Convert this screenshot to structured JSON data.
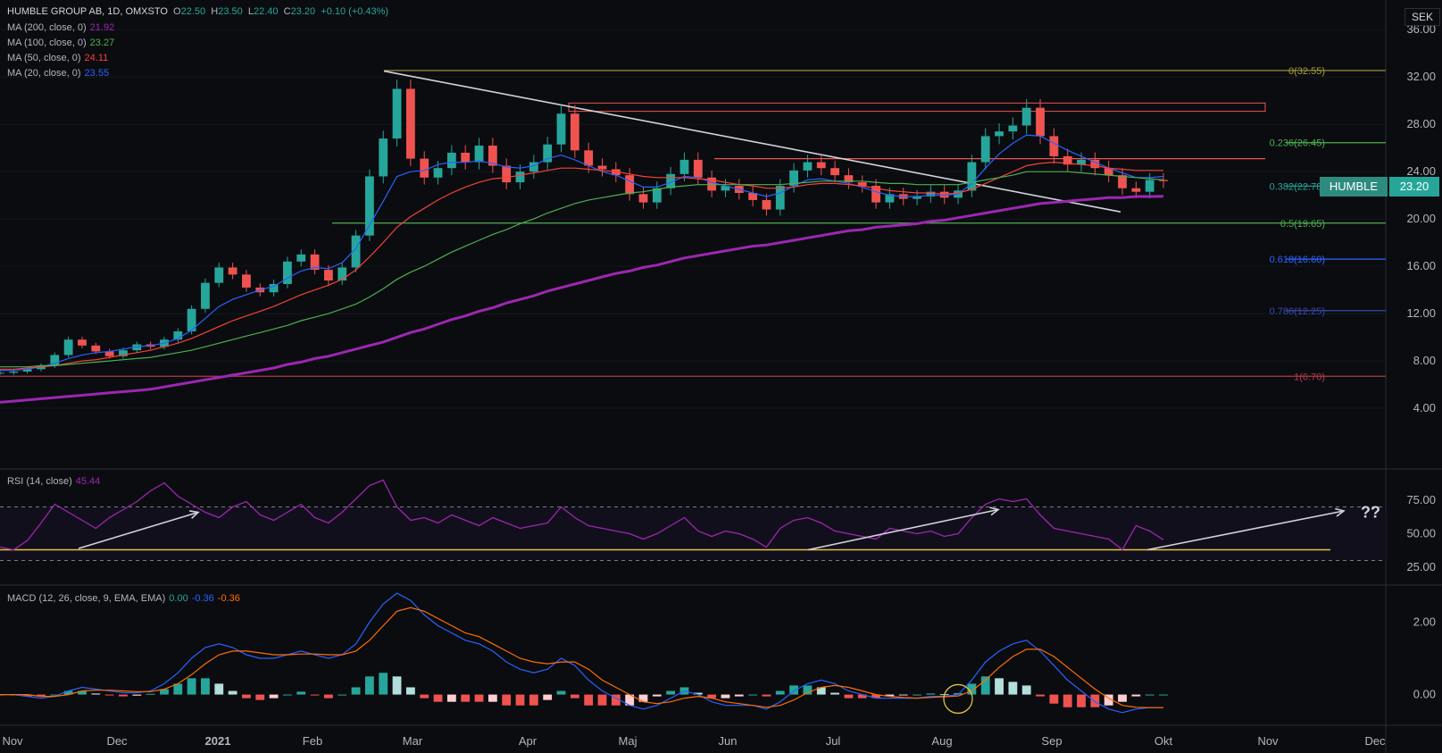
{
  "header": {
    "symbol": "HUMBLE GROUP AB, 1D, OMXSTO",
    "o_label": "O",
    "o": "22.50",
    "h_label": "H",
    "h": "23.50",
    "l_label": "L",
    "l": "22.40",
    "c_label": "C",
    "c": "23.20",
    "change": "+0.10 (+0.43%)"
  },
  "currency": "SEK",
  "ticker_tag": "HUMBLE",
  "price_tag": "23.20",
  "ma_legend": [
    {
      "label": "MA (200, close, 0)",
      "value": "21.92",
      "color": "#9c27b0"
    },
    {
      "label": "MA (100, close, 0)",
      "value": "23.27",
      "color": "#4caf50"
    },
    {
      "label": "MA (50, close, 0)",
      "value": "24.11",
      "color": "#f44336"
    },
    {
      "label": "MA (20, close, 0)",
      "value": "23.55",
      "color": "#2962ff"
    }
  ],
  "rsi_legend": {
    "label": "RSI (14, close)",
    "value": "45.44",
    "color": "#9c27b0"
  },
  "macd_legend": {
    "label": "MACD (12, 26, close, 9, EMA, EMA)",
    "v1": "0.00",
    "v2": "-0.36",
    "v3": "-0.36",
    "c1": "#26a69a",
    "c2": "#2962ff",
    "c3": "#ff6d00"
  },
  "annotation": "??",
  "colors": {
    "up": "#26a69a",
    "down": "#ef5350",
    "bg": "#0b0c10",
    "grid": "#1a1c23"
  },
  "chart_data": [
    {
      "type": "line",
      "title": "HUMBLE GROUP AB, 1D, OMXSTO",
      "ylabel": "SEK",
      "ylim": [
        0,
        37
      ],
      "y_ticks": [
        "36.00",
        "32.00",
        "28.00",
        "24.00",
        "20.00",
        "16.00",
        "12.00",
        "8.00",
        "4.00"
      ],
      "x_ticks": [
        "Nov",
        "Dec",
        "2021",
        "Feb",
        "Mar",
        "Apr",
        "Maj",
        "Jun",
        "Jul",
        "Aug",
        "Sep",
        "Okt",
        "Nov",
        "Dec"
      ],
      "series": [
        {
          "name": "Close",
          "color": "#26a69a",
          "values": [
            7.0,
            7.1,
            7.3,
            7.6,
            8.5,
            9.8,
            9.3,
            8.8,
            8.4,
            8.9,
            9.4,
            9.2,
            9.8,
            10.5,
            12.4,
            14.6,
            15.9,
            15.3,
            14.2,
            13.8,
            14.5,
            16.4,
            17.0,
            15.7,
            14.8,
            15.9,
            18.6,
            23.6,
            26.8,
            31.0,
            25.1,
            23.5,
            24.3,
            25.6,
            24.8,
            26.2,
            24.5,
            23.1,
            24.0,
            24.8,
            26.3,
            28.9,
            25.8,
            24.5,
            24.2,
            23.7,
            22.1,
            21.4,
            22.6,
            23.8,
            25.0,
            23.5,
            22.4,
            22.8,
            22.2,
            21.6,
            20.8,
            22.8,
            24.1,
            24.8,
            24.3,
            23.7,
            23.1,
            22.8,
            21.4,
            22.1,
            21.7,
            21.9,
            22.3,
            21.8,
            22.4,
            24.8,
            27.0,
            27.4,
            27.9,
            29.4,
            27.0,
            25.3,
            24.6,
            25.0,
            24.3,
            23.7,
            22.6,
            22.3,
            23.3,
            23.2
          ]
        },
        {
          "name": "MA (20, close, 0)",
          "color": "#2962ff",
          "values": [
            7.2,
            7.2,
            7.3,
            7.5,
            7.8,
            8.2,
            8.5,
            8.7,
            8.8,
            9.0,
            9.2,
            9.3,
            9.5,
            9.9,
            10.6,
            11.6,
            12.6,
            13.2,
            13.6,
            14.0,
            14.3,
            15.0,
            15.6,
            15.9,
            15.8,
            16.3,
            17.5,
            19.5,
            21.5,
            23.6,
            24.0,
            24.1,
            24.6,
            24.8,
            24.8,
            24.9,
            24.7,
            24.4,
            24.3,
            24.5,
            25.1,
            25.4,
            25.0,
            24.5,
            24.0,
            23.7,
            23.2,
            22.7,
            22.7,
            23.1,
            23.6,
            23.5,
            23.1,
            22.8,
            22.5,
            22.2,
            21.9,
            22.2,
            22.8,
            23.3,
            23.4,
            23.2,
            23.0,
            22.7,
            22.3,
            22.0,
            21.9,
            21.9,
            22.0,
            22.0,
            22.1,
            23.0,
            24.3,
            25.5,
            26.4,
            27.1,
            27.0,
            26.4,
            25.8,
            25.3,
            24.8,
            24.3,
            23.9,
            23.5,
            23.5,
            23.6
          ]
        },
        {
          "name": "MA (50, close, 0)",
          "color": "#f44336",
          "values": [
            7.3,
            7.3,
            7.4,
            7.5,
            7.6,
            7.8,
            8.0,
            8.1,
            8.3,
            8.5,
            8.7,
            8.9,
            9.2,
            9.5,
            9.9,
            10.4,
            10.9,
            11.4,
            11.8,
            12.2,
            12.6,
            13.1,
            13.6,
            14.0,
            14.4,
            14.9,
            15.7,
            16.8,
            18.0,
            19.3,
            20.2,
            20.9,
            21.6,
            22.2,
            22.7,
            23.1,
            23.4,
            23.5,
            23.7,
            23.9,
            24.1,
            24.3,
            24.3,
            24.2,
            24.1,
            24.0,
            23.8,
            23.6,
            23.5,
            23.5,
            23.5,
            23.4,
            23.3,
            23.1,
            22.9,
            22.8,
            22.6,
            22.6,
            22.7,
            22.9,
            23.0,
            23.0,
            22.9,
            22.8,
            22.6,
            22.4,
            22.3,
            22.2,
            22.2,
            22.1,
            22.2,
            22.5,
            23.0,
            23.5,
            24.0,
            24.5,
            24.7,
            24.8,
            24.7,
            24.6,
            24.5,
            24.3,
            24.2,
            24.1,
            24.1,
            24.1
          ]
        },
        {
          "name": "MA (100, close, 0)",
          "color": "#4caf50",
          "values": [
            7.5,
            7.5,
            7.5,
            7.6,
            7.6,
            7.7,
            7.8,
            7.9,
            8.0,
            8.1,
            8.2,
            8.3,
            8.5,
            8.7,
            8.9,
            9.2,
            9.5,
            9.8,
            10.1,
            10.4,
            10.7,
            11.0,
            11.4,
            11.7,
            12.0,
            12.4,
            12.8,
            13.4,
            14.1,
            14.9,
            15.5,
            16.0,
            16.6,
            17.2,
            17.7,
            18.2,
            18.7,
            19.1,
            19.6,
            20.0,
            20.5,
            20.9,
            21.3,
            21.6,
            21.8,
            22.0,
            22.2,
            22.3,
            22.5,
            22.7,
            22.8,
            22.9,
            22.9,
            22.9,
            22.9,
            22.9,
            22.9,
            22.9,
            23.0,
            23.1,
            23.2,
            23.2,
            23.2,
            23.2,
            23.1,
            23.0,
            23.0,
            22.9,
            22.9,
            22.9,
            22.9,
            23.1,
            23.3,
            23.5,
            23.7,
            24.0,
            24.0,
            24.0,
            24.0,
            23.9,
            23.8,
            23.7,
            23.6,
            23.5,
            23.4,
            23.3
          ]
        },
        {
          "name": "MA (200, close, 0)",
          "color": "#9c27b0",
          "values": [
            4.5,
            4.6,
            4.7,
            4.8,
            4.9,
            5.0,
            5.1,
            5.2,
            5.3,
            5.4,
            5.5,
            5.6,
            5.8,
            6.0,
            6.2,
            6.4,
            6.6,
            6.8,
            7.0,
            7.2,
            7.4,
            7.7,
            7.9,
            8.2,
            8.4,
            8.7,
            9.0,
            9.3,
            9.6,
            10.0,
            10.4,
            10.7,
            11.1,
            11.5,
            11.8,
            12.2,
            12.5,
            12.9,
            13.2,
            13.5,
            13.9,
            14.2,
            14.5,
            14.8,
            15.1,
            15.4,
            15.6,
            15.9,
            16.1,
            16.4,
            16.7,
            16.9,
            17.1,
            17.3,
            17.5,
            17.7,
            17.8,
            18.0,
            18.2,
            18.4,
            18.6,
            18.8,
            19.0,
            19.1,
            19.3,
            19.4,
            19.5,
            19.6,
            19.8,
            19.9,
            20.1,
            20.3,
            20.5,
            20.7,
            20.9,
            21.1,
            21.3,
            21.4,
            21.5,
            21.6,
            21.7,
            21.8,
            21.8,
            21.9,
            21.9,
            21.92
          ]
        }
      ],
      "fibonacci": [
        {
          "label": "0(32.55)",
          "value": 32.55,
          "color": "#a59c3c"
        },
        {
          "label": "0.236(26.45)",
          "value": 26.45,
          "color": "#4caf50"
        },
        {
          "label": "0.382(22.78)",
          "value": 22.78,
          "color": "#26a69a"
        },
        {
          "label": "0.5(19.65)",
          "value": 19.65,
          "color": "#4caf50"
        },
        {
          "label": "0.618(16.60)",
          "value": 16.6,
          "color": "#2962ff"
        },
        {
          "label": "0.786(12.25)",
          "value": 12.25,
          "color": "#3949ab"
        },
        {
          "label": "1(6.70)",
          "value": 6.7,
          "color": "#b23a48"
        }
      ]
    },
    {
      "type": "line",
      "title": "RSI (14, close)",
      "ylim": [
        15,
        95
      ],
      "y_ticks": [
        "75.00",
        "50.00",
        "25.00"
      ],
      "series": [
        {
          "name": "RSI (14, close)",
          "color": "#9c27b0",
          "values": [
            40,
            38,
            45,
            58,
            72,
            66,
            60,
            54,
            62,
            68,
            74,
            82,
            88,
            78,
            72,
            66,
            62,
            70,
            74,
            64,
            60,
            66,
            72,
            62,
            58,
            66,
            76,
            86,
            90,
            70,
            60,
            62,
            58,
            64,
            60,
            56,
            62,
            58,
            54,
            56,
            58,
            70,
            62,
            56,
            54,
            52,
            50,
            46,
            50,
            56,
            62,
            52,
            48,
            52,
            50,
            46,
            40,
            54,
            60,
            62,
            58,
            52,
            50,
            48,
            46,
            54,
            52,
            50,
            52,
            48,
            50,
            62,
            72,
            76,
            74,
            76,
            64,
            54,
            52,
            50,
            48,
            46,
            38,
            56,
            52,
            45.44
          ]
        }
      ]
    },
    {
      "type": "line",
      "title": "MACD (12, 26, close, 9, EMA, EMA)",
      "ylim": [
        -0.8,
        2.9
      ],
      "y_ticks": [
        "2.00",
        "0.00"
      ],
      "series": [
        {
          "name": "MACD",
          "color": "#2962ff",
          "values": [
            0.0,
            0.0,
            -0.05,
            -0.1,
            -0.05,
            0.1,
            0.2,
            0.15,
            0.1,
            0.05,
            0.05,
            0.1,
            0.3,
            0.6,
            1.0,
            1.3,
            1.4,
            1.3,
            1.1,
            1.0,
            1.0,
            1.1,
            1.2,
            1.1,
            1.0,
            1.1,
            1.4,
            2.0,
            2.5,
            2.8,
            2.6,
            2.2,
            1.9,
            1.7,
            1.5,
            1.4,
            1.2,
            0.9,
            0.7,
            0.6,
            0.7,
            1.0,
            0.8,
            0.4,
            0.1,
            -0.1,
            -0.3,
            -0.4,
            -0.3,
            -0.1,
            0.1,
            0.0,
            -0.2,
            -0.3,
            -0.3,
            -0.3,
            -0.4,
            -0.2,
            0.1,
            0.3,
            0.4,
            0.3,
            0.1,
            0.0,
            -0.1,
            -0.1,
            -0.1,
            -0.1,
            -0.05,
            -0.05,
            0.0,
            0.4,
            0.9,
            1.2,
            1.4,
            1.5,
            1.2,
            0.8,
            0.4,
            0.1,
            -0.2,
            -0.4,
            -0.5,
            -0.4,
            -0.36,
            -0.36
          ]
        },
        {
          "name": "Signal",
          "color": "#ff6d00",
          "values": [
            0.0,
            0.0,
            0.0,
            -0.05,
            -0.05,
            0.0,
            0.1,
            0.12,
            0.12,
            0.1,
            0.08,
            0.08,
            0.15,
            0.3,
            0.55,
            0.85,
            1.1,
            1.2,
            1.2,
            1.15,
            1.1,
            1.1,
            1.12,
            1.12,
            1.1,
            1.1,
            1.2,
            1.5,
            1.9,
            2.3,
            2.4,
            2.3,
            2.1,
            1.9,
            1.7,
            1.6,
            1.4,
            1.2,
            1.0,
            0.9,
            0.85,
            0.9,
            0.9,
            0.7,
            0.4,
            0.2,
            0.0,
            -0.2,
            -0.25,
            -0.2,
            -0.1,
            -0.05,
            -0.1,
            -0.2,
            -0.25,
            -0.3,
            -0.35,
            -0.3,
            -0.15,
            0.05,
            0.2,
            0.25,
            0.2,
            0.1,
            0.0,
            -0.05,
            -0.08,
            -0.1,
            -0.08,
            -0.06,
            -0.04,
            0.1,
            0.4,
            0.75,
            1.05,
            1.25,
            1.25,
            1.05,
            0.75,
            0.45,
            0.15,
            -0.1,
            -0.3,
            -0.35,
            -0.36,
            -0.36
          ]
        }
      ]
    }
  ]
}
